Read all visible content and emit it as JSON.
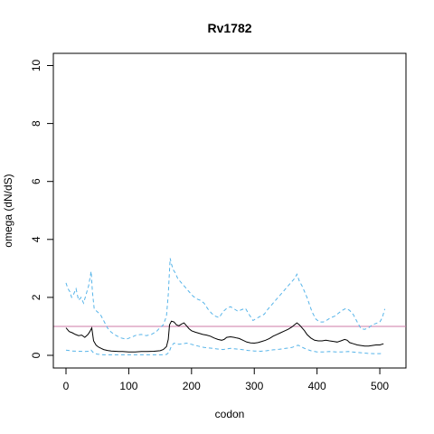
{
  "chart_data": {
    "type": "line",
    "title": "Rv1782",
    "xlabel": "codon",
    "ylabel": "omega (dN/dS)",
    "xlim": [
      0,
      510
    ],
    "ylim": [
      0,
      10
    ],
    "xticks": [
      0,
      100,
      200,
      300,
      400,
      500
    ],
    "yticks": [
      0,
      2,
      4,
      6,
      8,
      10
    ],
    "grid": false,
    "reference_line": {
      "y": 1,
      "color": "#cc79a7"
    },
    "colors": {
      "estimate": "#000000",
      "interval": "#56b4e9"
    },
    "series": [
      {
        "role": "estimate",
        "x": [
          0,
          5,
          10,
          15,
          20,
          25,
          30,
          35,
          38,
          41,
          44,
          48,
          52,
          56,
          60,
          66,
          72,
          78,
          84,
          90,
          100,
          110,
          120,
          130,
          140,
          150,
          155,
          160,
          163,
          165,
          168,
          172,
          176,
          180,
          184,
          188,
          192,
          196,
          200,
          206,
          212,
          218,
          224,
          230,
          236,
          242,
          248,
          252,
          256,
          262,
          268,
          272,
          276,
          282,
          288,
          294,
          300,
          306,
          312,
          318,
          324,
          330,
          336,
          342,
          348,
          354,
          360,
          364,
          368,
          372,
          376,
          380,
          384,
          390,
          396,
          402,
          408,
          414,
          420,
          426,
          432,
          438,
          444,
          448,
          452,
          458,
          464,
          470,
          476,
          482,
          488,
          494,
          500,
          506
        ],
        "y": [
          0.95,
          0.82,
          0.78,
          0.72,
          0.68,
          0.7,
          0.62,
          0.72,
          0.82,
          0.95,
          0.5,
          0.35,
          0.28,
          0.24,
          0.2,
          0.17,
          0.15,
          0.14,
          0.13,
          0.13,
          0.12,
          0.12,
          0.13,
          0.13,
          0.14,
          0.16,
          0.2,
          0.3,
          0.55,
          1.05,
          1.18,
          1.15,
          1.05,
          1.02,
          1.08,
          1.12,
          1.02,
          0.92,
          0.85,
          0.8,
          0.76,
          0.72,
          0.7,
          0.66,
          0.6,
          0.55,
          0.52,
          0.55,
          0.62,
          0.64,
          0.62,
          0.6,
          0.58,
          0.52,
          0.46,
          0.43,
          0.42,
          0.44,
          0.48,
          0.52,
          0.58,
          0.66,
          0.72,
          0.78,
          0.84,
          0.9,
          0.98,
          1.05,
          1.12,
          1.05,
          0.95,
          0.85,
          0.72,
          0.6,
          0.52,
          0.5,
          0.5,
          0.52,
          0.5,
          0.48,
          0.46,
          0.5,
          0.55,
          0.52,
          0.44,
          0.4,
          0.36,
          0.34,
          0.32,
          0.32,
          0.34,
          0.36,
          0.36,
          0.4
        ]
      },
      {
        "role": "upper",
        "x": [
          0,
          3,
          6,
          9,
          12,
          16,
          20,
          24,
          28,
          32,
          36,
          40,
          42,
          45,
          50,
          55,
          60,
          66,
          72,
          80,
          88,
          96,
          104,
          112,
          120,
          128,
          136,
          144,
          150,
          155,
          160,
          163,
          166,
          168,
          171,
          174,
          178,
          182,
          186,
          190,
          196,
          202,
          208,
          214,
          220,
          226,
          232,
          238,
          244,
          250,
          256,
          262,
          268,
          274,
          280,
          286,
          292,
          298,
          304,
          310,
          316,
          322,
          328,
          334,
          340,
          346,
          352,
          358,
          364,
          368,
          372,
          376,
          380,
          384,
          388,
          392,
          398,
          404,
          410,
          416,
          422,
          428,
          434,
          440,
          446,
          452,
          458,
          464,
          470,
          476,
          482,
          488,
          494,
          500,
          504,
          508
        ],
        "y": [
          2.5,
          2.3,
          2.2,
          2.0,
          2.1,
          2.3,
          1.9,
          2.0,
          1.8,
          2.1,
          2.4,
          2.9,
          2.2,
          1.6,
          1.5,
          1.4,
          1.2,
          0.95,
          0.8,
          0.68,
          0.6,
          0.56,
          0.62,
          0.7,
          0.72,
          0.68,
          0.72,
          0.82,
          0.96,
          1.05,
          1.35,
          2.1,
          3.35,
          3.15,
          2.95,
          2.85,
          2.65,
          2.55,
          2.45,
          2.35,
          2.2,
          2.05,
          1.95,
          1.9,
          1.8,
          1.6,
          1.45,
          1.35,
          1.3,
          1.5,
          1.62,
          1.68,
          1.6,
          1.52,
          1.58,
          1.62,
          1.4,
          1.2,
          1.28,
          1.35,
          1.42,
          1.6,
          1.75,
          1.9,
          2.05,
          2.2,
          2.35,
          2.5,
          2.65,
          2.8,
          2.55,
          2.4,
          2.2,
          2.0,
          1.75,
          1.5,
          1.25,
          1.15,
          1.15,
          1.22,
          1.3,
          1.35,
          1.45,
          1.55,
          1.62,
          1.55,
          1.4,
          1.15,
          0.92,
          0.9,
          0.95,
          1.05,
          1.1,
          1.15,
          1.3,
          1.6
        ]
      },
      {
        "role": "lower",
        "x": [
          0,
          10,
          20,
          30,
          36,
          40,
          44,
          50,
          60,
          70,
          80,
          100,
          120,
          140,
          155,
          160,
          164,
          168,
          172,
          176,
          180,
          186,
          192,
          200,
          210,
          220,
          230,
          240,
          250,
          256,
          262,
          270,
          280,
          290,
          300,
          310,
          320,
          330,
          340,
          350,
          360,
          366,
          370,
          376,
          382,
          390,
          400,
          410,
          420,
          430,
          440,
          450,
          460,
          470,
          480,
          490,
          500,
          506
        ],
        "y": [
          0.18,
          0.15,
          0.14,
          0.13,
          0.14,
          0.18,
          0.08,
          0.04,
          0.02,
          0.02,
          0.02,
          0.02,
          0.02,
          0.02,
          0.02,
          0.03,
          0.1,
          0.32,
          0.42,
          0.4,
          0.38,
          0.4,
          0.42,
          0.38,
          0.32,
          0.27,
          0.25,
          0.22,
          0.2,
          0.22,
          0.24,
          0.22,
          0.2,
          0.17,
          0.15,
          0.14,
          0.16,
          0.19,
          0.21,
          0.24,
          0.27,
          0.32,
          0.35,
          0.28,
          0.22,
          0.16,
          0.12,
          0.12,
          0.13,
          0.12,
          0.12,
          0.13,
          0.11,
          0.09,
          0.07,
          0.06,
          0.06,
          0.07
        ]
      }
    ]
  }
}
